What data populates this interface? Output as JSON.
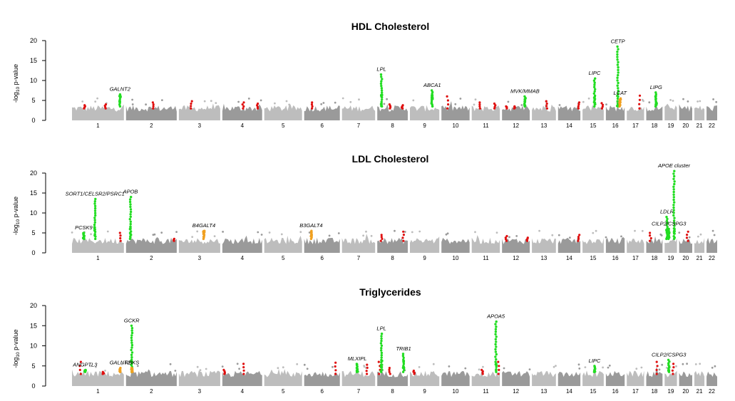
{
  "chart_data": [
    {
      "type": "scatter",
      "title": "HDL  Cholesterol",
      "ylabel": "-log10 p-value",
      "ylim": [
        0,
        20
      ],
      "yticks": [
        0,
        5,
        10,
        15,
        20
      ],
      "chromosomes": [
        "1",
        "2",
        "3",
        "4",
        "5",
        "6",
        "7",
        "8",
        "9",
        "10",
        "11",
        "12",
        "13",
        "14",
        "15",
        "16",
        "17",
        "18",
        "19",
        "20",
        "21",
        "22"
      ],
      "chromosome_lengths": [
        249,
        243,
        198,
        191,
        181,
        171,
        159,
        146,
        141,
        135,
        135,
        133,
        115,
        107,
        102,
        90,
        83,
        78,
        59,
        63,
        48,
        51
      ],
      "hits": [
        {
          "gene": "GALNT2",
          "chr": 1,
          "pos": 230,
          "peak": 6.5,
          "color": "green"
        },
        {
          "gene": "LPL",
          "chr": 8,
          "pos": 20,
          "peak": 11.5,
          "color": "green"
        },
        {
          "gene": "ABCA1",
          "chr": 9,
          "pos": 107,
          "peak": 7.5,
          "color": "green"
        },
        {
          "gene": "MVK/MMAB",
          "chr": 12,
          "pos": 110,
          "peak": 6.0,
          "color": "green"
        },
        {
          "gene": "LIPC",
          "chr": 15,
          "pos": 58,
          "peak": 10.5,
          "color": "green"
        },
        {
          "gene": "CETP",
          "chr": 16,
          "pos": 57,
          "peak": 18.5,
          "color": "green"
        },
        {
          "gene": "LCAT",
          "chr": 16,
          "pos": 68,
          "peak": 5.5,
          "color": "orange"
        },
        {
          "gene": "LIPG",
          "chr": 18,
          "pos": 47,
          "peak": 7.0,
          "color": "green"
        }
      ],
      "secondary_signals": [
        {
          "chr": 1,
          "pos": 60,
          "peak": 3.8
        },
        {
          "chr": 1,
          "pos": 160,
          "peak": 4.0
        },
        {
          "chr": 2,
          "pos": 130,
          "peak": 4.5
        },
        {
          "chr": 3,
          "pos": 60,
          "peak": 4.8
        },
        {
          "chr": 4,
          "pos": 100,
          "peak": 4.5
        },
        {
          "chr": 4,
          "pos": 170,
          "peak": 4.2
        },
        {
          "chr": 6,
          "pos": 40,
          "peak": 4.5
        },
        {
          "chr": 8,
          "pos": 60,
          "peak": 4.0
        },
        {
          "chr": 8,
          "pos": 120,
          "peak": 3.8
        },
        {
          "chr": 10,
          "pos": 30,
          "peak": 6.0
        },
        {
          "chr": 11,
          "pos": 40,
          "peak": 4.5
        },
        {
          "chr": 11,
          "pos": 110,
          "peak": 4.2
        },
        {
          "chr": 12,
          "pos": 20,
          "peak": 3.5
        },
        {
          "chr": 12,
          "pos": 60,
          "peak": 3.5
        },
        {
          "chr": 13,
          "pos": 70,
          "peak": 4.8
        },
        {
          "chr": 14,
          "pos": 100,
          "peak": 4.5
        },
        {
          "chr": 15,
          "pos": 95,
          "peak": 4.3
        },
        {
          "chr": 17,
          "pos": 60,
          "peak": 6.2
        }
      ]
    },
    {
      "type": "scatter",
      "title": "LDL  Cholesterol",
      "ylabel": "-log10 p-value",
      "ylim": [
        0,
        20
      ],
      "yticks": [
        0,
        5,
        10,
        15,
        20
      ],
      "chromosomes": [
        "1",
        "2",
        "3",
        "4",
        "5",
        "6",
        "7",
        "8",
        "9",
        "10",
        "11",
        "12",
        "13",
        "14",
        "15",
        "16",
        "17",
        "18",
        "19",
        "20",
        "21",
        "22"
      ],
      "chromosome_lengths": [
        249,
        243,
        198,
        191,
        181,
        171,
        159,
        146,
        141,
        135,
        135,
        133,
        115,
        107,
        102,
        90,
        83,
        78,
        59,
        63,
        48,
        51
      ],
      "hits": [
        {
          "gene": "PCSK9",
          "chr": 1,
          "pos": 56,
          "peak": 5.0,
          "color": "green"
        },
        {
          "gene": "SORT1/CELSR2/PSRC1",
          "chr": 1,
          "pos": 110,
          "peak": 13.5,
          "color": "green"
        },
        {
          "gene": "APOB",
          "chr": 2,
          "pos": 21,
          "peak": 14.0,
          "color": "green"
        },
        {
          "gene": "B4GALT4",
          "chr": 3,
          "pos": 120,
          "peak": 5.5,
          "color": "orange"
        },
        {
          "gene": "B3GALT4",
          "chr": 6,
          "pos": 33,
          "peak": 5.5,
          "color": "orange"
        },
        {
          "gene": "LDLR",
          "chr": 19,
          "pos": 11,
          "peak": 9.0,
          "color": "green"
        },
        {
          "gene": "APOE cluster",
          "chr": 19,
          "pos": 45,
          "peak": 20.5,
          "color": "green"
        },
        {
          "gene": "CILP2/CSPG3",
          "chr": 19,
          "pos": 20,
          "peak": 6.0,
          "color": "green"
        }
      ],
      "secondary_signals": [
        {
          "chr": 1,
          "pos": 230,
          "peak": 5.0
        },
        {
          "chr": 2,
          "pos": 230,
          "peak": 3.5
        },
        {
          "chr": 8,
          "pos": 20,
          "peak": 4.5
        },
        {
          "chr": 8,
          "pos": 125,
          "peak": 5.3
        },
        {
          "chr": 12,
          "pos": 20,
          "peak": 4.2
        },
        {
          "chr": 12,
          "pos": 120,
          "peak": 3.8
        },
        {
          "chr": 14,
          "pos": 100,
          "peak": 4.5
        },
        {
          "chr": 18,
          "pos": 20,
          "peak": 5.0
        },
        {
          "chr": 20,
          "pos": 40,
          "peak": 5.3
        }
      ]
    },
    {
      "type": "scatter",
      "title": "Triglycerides",
      "ylabel": "-log10 p-value",
      "ylim": [
        0,
        20
      ],
      "yticks": [
        0,
        5,
        10,
        15,
        20
      ],
      "chromosomes": [
        "1",
        "2",
        "3",
        "4",
        "5",
        "6",
        "7",
        "8",
        "9",
        "10",
        "11",
        "12",
        "13",
        "14",
        "15",
        "16",
        "17",
        "18",
        "19",
        "20",
        "21",
        "22"
      ],
      "chromosome_lengths": [
        249,
        243,
        198,
        191,
        181,
        171,
        159,
        146,
        141,
        135,
        135,
        133,
        115,
        107,
        102,
        90,
        83,
        78,
        59,
        63,
        48,
        51
      ],
      "hits": [
        {
          "gene": "ANGPTL3",
          "chr": 1,
          "pos": 63,
          "peak": 4.0,
          "color": "green"
        },
        {
          "gene": "GALNT2",
          "chr": 1,
          "pos": 230,
          "peak": 4.5,
          "color": "orange"
        },
        {
          "gene": "GCKR",
          "chr": 2,
          "pos": 27,
          "peak": 15.0,
          "color": "green"
        },
        {
          "gene": "RBKS",
          "chr": 2,
          "pos": 28,
          "peak": 4.5,
          "color": "orange"
        },
        {
          "gene": "MLXIPL",
          "chr": 7,
          "pos": 73,
          "peak": 5.5,
          "color": "green"
        },
        {
          "gene": "LPL",
          "chr": 8,
          "pos": 20,
          "peak": 13.0,
          "color": "green"
        },
        {
          "gene": "TRIB1",
          "chr": 8,
          "pos": 126,
          "peak": 8.0,
          "color": "green"
        },
        {
          "gene": "APOA5",
          "chr": 11,
          "pos": 116,
          "peak": 16.0,
          "color": "green"
        },
        {
          "gene": "LIPC",
          "chr": 15,
          "pos": 58,
          "peak": 5.0,
          "color": "green"
        },
        {
          "gene": "CILP2/CSPG3",
          "chr": 19,
          "pos": 20,
          "peak": 6.5,
          "color": "green"
        }
      ],
      "secondary_signals": [
        {
          "chr": 1,
          "pos": 40,
          "peak": 6.0
        },
        {
          "chr": 1,
          "pos": 150,
          "peak": 3.5
        },
        {
          "chr": 4,
          "pos": 10,
          "peak": 4.0
        },
        {
          "chr": 4,
          "pos": 100,
          "peak": 5.5
        },
        {
          "chr": 6,
          "pos": 150,
          "peak": 5.8
        },
        {
          "chr": 7,
          "pos": 120,
          "peak": 5.3
        },
        {
          "chr": 8,
          "pos": 10,
          "peak": 6.0
        },
        {
          "chr": 8,
          "pos": 60,
          "peak": 4.5
        },
        {
          "chr": 9,
          "pos": 20,
          "peak": 3.8
        },
        {
          "chr": 11,
          "pos": 50,
          "peak": 4.0
        },
        {
          "chr": 11,
          "pos": 130,
          "peak": 6.0
        },
        {
          "chr": 18,
          "pos": 50,
          "peak": 6.0
        },
        {
          "chr": 19,
          "pos": 40,
          "peak": 5.5
        }
      ]
    }
  ]
}
